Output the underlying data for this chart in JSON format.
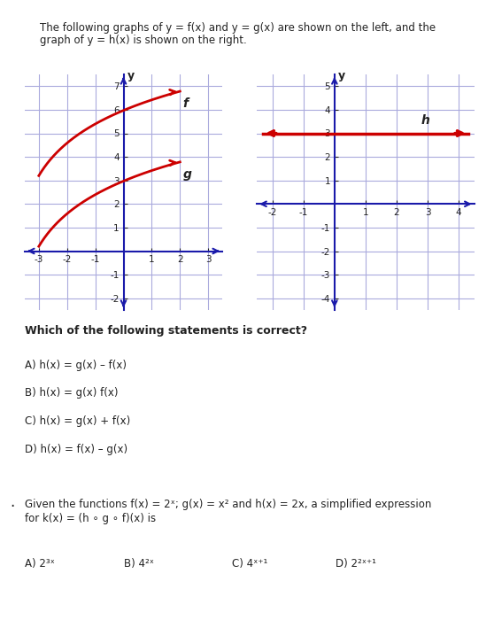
{
  "title_text": "The following graphs of y = f(x) and y = g(x) are shown on the left, and the\ngraph of y = h(x) is shown on the right.",
  "left_xlim": [
    -3.5,
    3.5
  ],
  "left_ylim": [
    -2.5,
    7.5
  ],
  "right_xlim": [
    -2.5,
    4.5
  ],
  "right_ylim": [
    -4.5,
    5.5
  ],
  "curve_color": "#cc0000",
  "axis_color": "#1a1aaa",
  "grid_color": "#aaaadd",
  "text_color": "#222222",
  "q1_text": "Which of the following statements is correct?",
  "q1_options": [
    "A) h(x) = g(x) – f(x)",
    "B) h(x) = g(x) f(x)",
    "C) h(x) = g(x) + f(x)",
    "D) h(x) = f(x) – g(x)"
  ],
  "q2_text": "Given the functions f(x) = 2ˣ; g(x) = x² and h(x) = 2x, a simplified expression\nfor k(x) = (h ∘ g ∘ f)(x) is",
  "q2_options": [
    "A) 2³ˣ",
    "B) 4²ˣ",
    "C) 4ˣ⁺¹",
    "D) 2²ˣ⁺¹"
  ],
  "background_color": "#ffffff"
}
